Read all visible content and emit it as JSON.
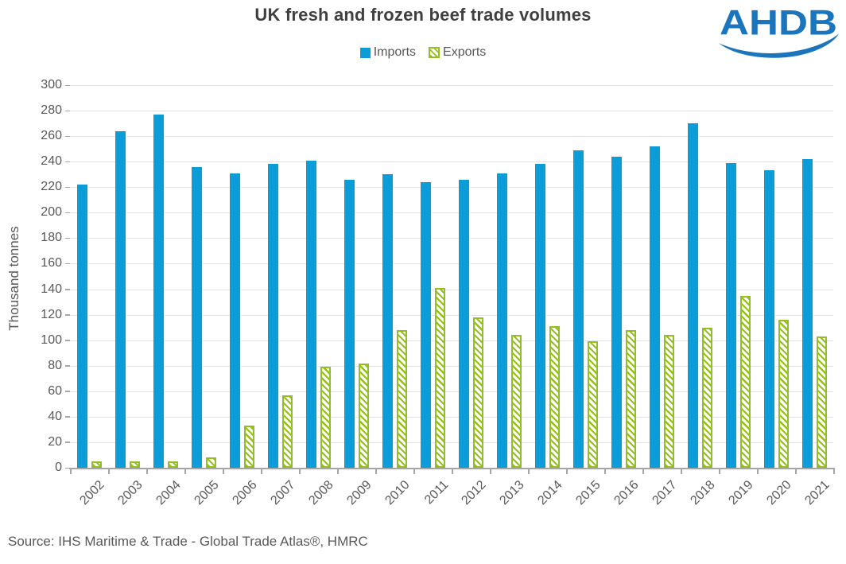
{
  "title": "UK fresh and frozen beef trade volumes",
  "logo": {
    "text": "AHDB"
  },
  "legend": {
    "imports_label": "Imports",
    "exports_label": "Exports"
  },
  "y_axis": {
    "title": "Thousand tonnes",
    "min": 0,
    "max": 300,
    "step": 20
  },
  "source": "Source: IHS Maritime & Trade - Global Trade Atlas®, HMRC",
  "colors": {
    "imports_blue": "#0C9DD9",
    "exports_green": "#93C01F",
    "title_text": "#404040",
    "axis_text": "#595959",
    "gridline": "#E2E2E2",
    "axis_line": "#A6A6A6",
    "logo_blue": "#1B75BC"
  },
  "chart_data": {
    "type": "bar",
    "title": "UK fresh and frozen beef trade volumes",
    "ylabel": "Thousand tonnes",
    "ylim": [
      0,
      300
    ],
    "y_step": 20,
    "grid": true,
    "legend_position": "top",
    "x_label_rotation": -45,
    "categories": [
      "2002",
      "2003",
      "2004",
      "2005",
      "2006",
      "2007",
      "2008",
      "2009",
      "2010",
      "2011",
      "2012",
      "2013",
      "2014",
      "2015",
      "2016",
      "2017",
      "2018",
      "2019",
      "2020",
      "2021"
    ],
    "series": [
      {
        "name": "Imports",
        "style": "solid",
        "values": [
          222,
          264,
          277,
          236,
          231,
          238,
          241,
          226,
          230,
          224,
          226,
          231,
          238,
          249,
          244,
          252,
          270,
          239,
          233,
          242
        ]
      },
      {
        "name": "Exports",
        "style": "hatched",
        "values": [
          5,
          5,
          5,
          8,
          33,
          57,
          79,
          82,
          108,
          141,
          118,
          104,
          111,
          99,
          108,
          104,
          110,
          135,
          116,
          103
        ]
      }
    ]
  }
}
